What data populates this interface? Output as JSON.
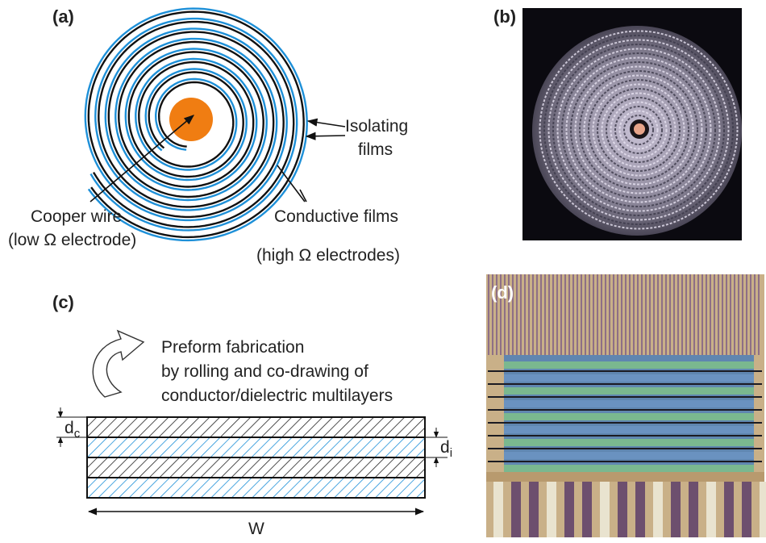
{
  "panels": {
    "a": {
      "label": "(a)",
      "isolating": [
        "Isolating",
        "films"
      ],
      "wire": [
        "Cooper wire",
        "(low Ω electrode)"
      ],
      "conductive": [
        "Conductive films",
        "(high Ω electrodes)"
      ]
    },
    "b": {
      "label": "(b)"
    },
    "c": {
      "label": "(c)",
      "process": [
        "Preform fabrication",
        "by rolling and co-drawing of",
        "conductor/dielectric multilayers"
      ],
      "dc": {
        "base": "d",
        "sub": "c"
      },
      "di": {
        "base": "d",
        "sub": "i"
      },
      "width": "W"
    },
    "d": {
      "label": "(d)"
    }
  }
}
